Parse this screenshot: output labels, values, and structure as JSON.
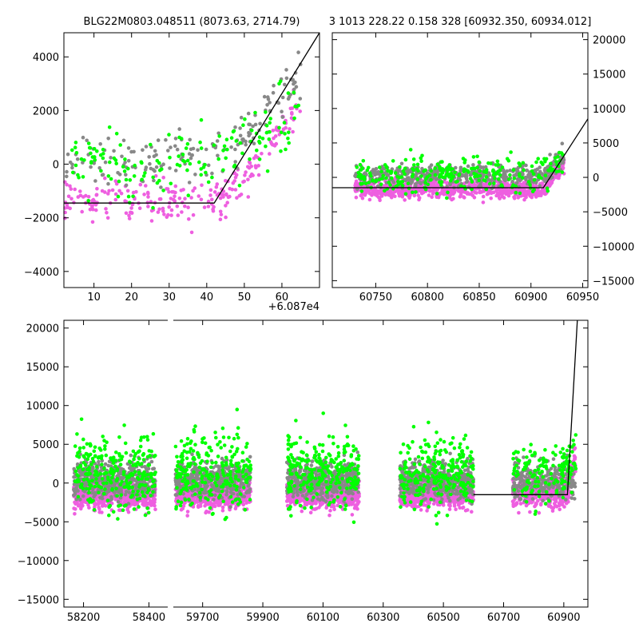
{
  "title_left": "BLG22M0803.048511 (8073.63, 2714.79)",
  "title_right": "3 1013 228.22 0.158 328 [60932.350, 60934.012]",
  "colors": {
    "magenta": "#ee5fe0",
    "green": "#00ff00",
    "grey": "#888888",
    "model": "#000000"
  },
  "chart_data": [
    {
      "type": "scatter",
      "panel": "top-left zoom",
      "title": "BLG22M0803.048511 (8073.63, 2714.79)",
      "x_offset_label": "+6.087e4",
      "xlim": [
        2,
        70
      ],
      "ylim": [
        -4600,
        4900
      ],
      "xticks": [
        10,
        20,
        30,
        40,
        50,
        60
      ],
      "xtick_labels": [
        "10",
        "20",
        "30",
        "40",
        "50",
        "60"
      ],
      "yticks": [
        -4000,
        -2000,
        0,
        2000,
        4000
      ],
      "ytick_labels": [
        "−4000",
        "−2000",
        "0",
        "2000",
        "4000"
      ],
      "model_line": [
        [
          2,
          -1450
        ],
        [
          42,
          -1450
        ],
        [
          70,
          4900
        ]
      ],
      "series": [
        {
          "color": "magenta",
          "baseline": -1400,
          "spread": 700
        },
        {
          "color": "grey",
          "baseline": 100,
          "spread": 800
        },
        {
          "color": "green",
          "baseline": 200,
          "spread": 1000
        }
      ]
    },
    {
      "type": "scatter",
      "panel": "top-right",
      "title": "3 1013 228.22 0.158 328 [60932.350, 60934.012]",
      "xlim": [
        60708,
        60955
      ],
      "ylim": [
        -16000,
        21000
      ],
      "xticks": [
        60750,
        60800,
        60850,
        60900,
        60950
      ],
      "xtick_labels": [
        "60750",
        "60800",
        "60850",
        "60900",
        "60950"
      ],
      "yticks": [
        -15000,
        -10000,
        -5000,
        0,
        5000,
        10000,
        15000,
        20000
      ],
      "ytick_labels": [
        "−15000",
        "−10000",
        "−5000",
        "0",
        "5000",
        "10000",
        "15000",
        "20000"
      ],
      "model_line": [
        [
          60708,
          -1500
        ],
        [
          60912,
          -1500
        ],
        [
          60955,
          8500
        ]
      ],
      "data_x_range": [
        60730,
        60932
      ]
    },
    {
      "type": "scatter",
      "panel": "bottom full light curve (broken x axis)",
      "ylim": [
        -16000,
        21000
      ],
      "yticks": [
        -15000,
        -10000,
        -5000,
        0,
        5000,
        10000,
        15000,
        20000
      ],
      "ytick_labels": [
        "−15000",
        "−10000",
        "−5000",
        "0",
        "5000",
        "10000",
        "15000",
        "20000"
      ],
      "segments": [
        {
          "xlim": [
            58140,
            58460
          ],
          "xticks": [
            58200,
            58400
          ],
          "xtick_labels": [
            "58200",
            "58400"
          ],
          "data_x_range": [
            58170,
            58420
          ]
        },
        {
          "xlim": [
            59600,
            60980
          ],
          "xticks": [
            59700,
            59900,
            60100,
            60300,
            60500,
            60700,
            60900
          ],
          "xtick_labels": [
            "59700",
            "59900",
            "60100",
            "60300",
            "60500",
            "60700",
            "60900"
          ],
          "seasons": [
            [
              59610,
              59860
            ],
            [
              59980,
              60220
            ],
            [
              60355,
              60600
            ],
            [
              60730,
              60940
            ]
          ]
        }
      ],
      "model_line": [
        [
          60600,
          -1500
        ],
        [
          60912,
          -1500
        ],
        [
          60945,
          21000
        ]
      ]
    }
  ]
}
